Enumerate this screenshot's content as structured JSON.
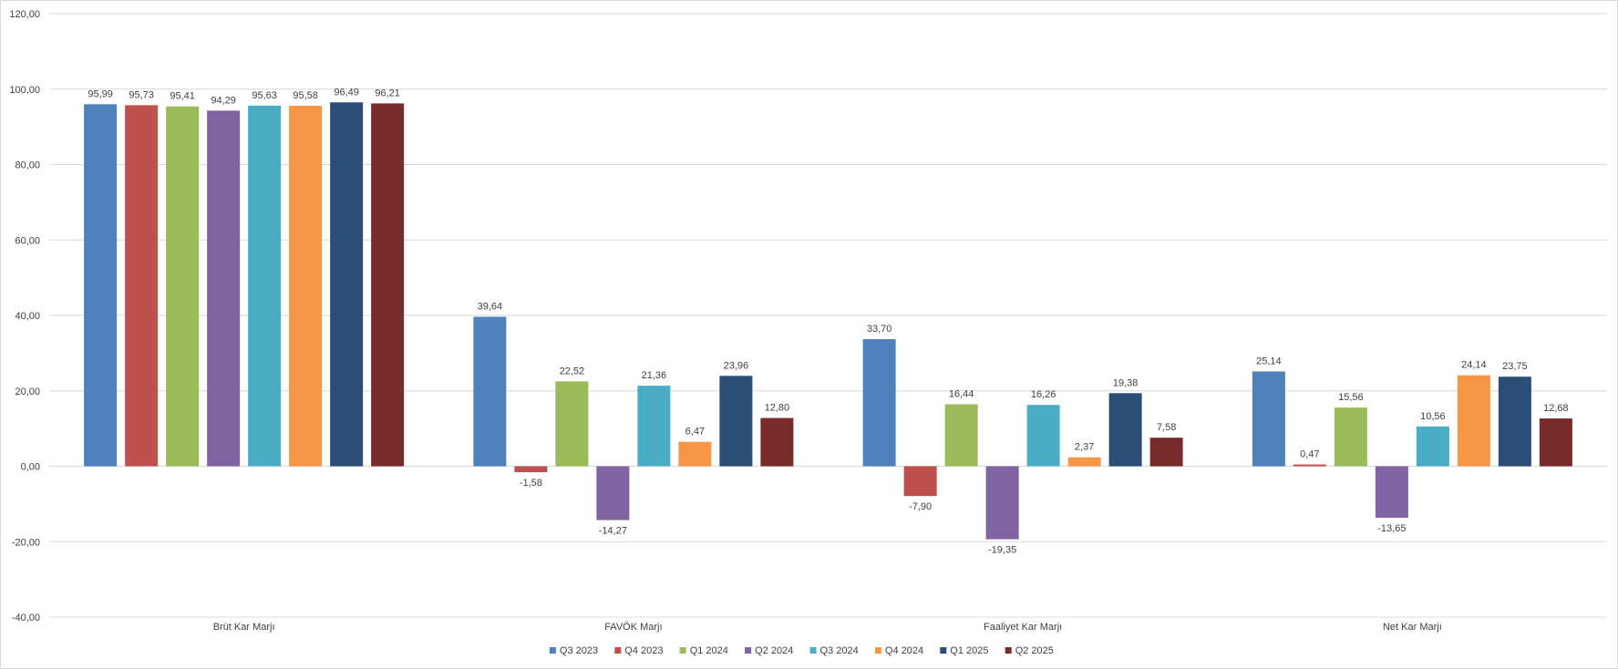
{
  "chart_data": {
    "type": "bar",
    "title": "",
    "xlabel": "",
    "ylabel": "",
    "ylim": [
      -40,
      120
    ],
    "y_ticks": [
      120,
      100,
      80,
      60,
      40,
      20,
      0,
      -20,
      -40
    ],
    "y_tick_labels": [
      "120,00",
      "100,00",
      "80,00",
      "60,00",
      "40,00",
      "20,00",
      "0,00",
      "-20,00",
      "-40,00"
    ],
    "grid": true,
    "legend_position": "bottom",
    "categories": [
      "Brüt Kar Marjı",
      "FAVÖK Marjı",
      "Faaliyet Kar Marjı",
      "Net Kar Marjı"
    ],
    "series": [
      {
        "name": "Q3 2023",
        "color": "#4f81bd",
        "values": [
          95.99,
          39.64,
          33.7,
          25.14
        ],
        "labels": [
          "95,99",
          "39,64",
          "33,70",
          "25,14"
        ]
      },
      {
        "name": "Q4 2023",
        "color": "#c0504d",
        "values": [
          95.73,
          -1.58,
          -7.9,
          0.47
        ],
        "labels": [
          "95,73",
          "-1,58",
          "-7,90",
          "0,47"
        ]
      },
      {
        "name": "Q1 2024",
        "color": "#9bbb59",
        "values": [
          95.41,
          22.52,
          16.44,
          15.56
        ],
        "labels": [
          "95,41",
          "22,52",
          "16,44",
          "15,56"
        ]
      },
      {
        "name": "Q2 2024",
        "color": "#8064a2",
        "values": [
          94.29,
          -14.27,
          -19.35,
          -13.65
        ],
        "labels": [
          "94,29",
          "-14,27",
          "-19,35",
          "-13,65"
        ]
      },
      {
        "name": "Q3 2024",
        "color": "#4bacc6",
        "values": [
          95.63,
          21.36,
          16.26,
          10.56
        ],
        "labels": [
          "95,63",
          "21,36",
          "16,26",
          "10,56"
        ]
      },
      {
        "name": "Q4 2024",
        "color": "#f79646",
        "values": [
          95.58,
          6.47,
          2.37,
          24.14
        ],
        "labels": [
          "95,58",
          "6,47",
          "2,37",
          "24,14"
        ]
      },
      {
        "name": "Q1 2025",
        "color": "#2c4d75",
        "values": [
          96.49,
          23.96,
          19.38,
          23.75
        ],
        "labels": [
          "96,49",
          "23,96",
          "19,38",
          "23,75"
        ]
      },
      {
        "name": "Q2 2025",
        "color": "#772c2a",
        "values": [
          96.21,
          12.8,
          7.58,
          12.68
        ],
        "labels": [
          "96,21",
          "12,80",
          "7,58",
          "12,68"
        ]
      }
    ]
  }
}
